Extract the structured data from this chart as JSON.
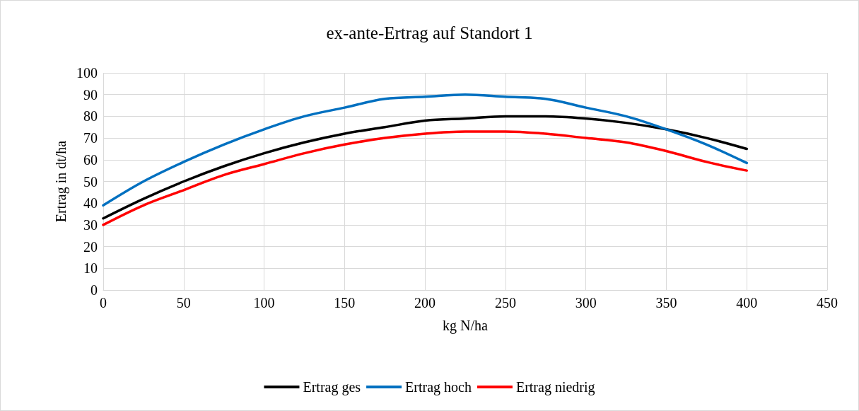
{
  "chart_data": {
    "type": "line",
    "title": "ex-ante-Ertrag auf Standort 1",
    "xlabel": "kg N/ha",
    "ylabel": "Ertrag in dt/ha",
    "x": [
      0,
      25,
      50,
      75,
      100,
      125,
      150,
      175,
      200,
      225,
      250,
      275,
      300,
      325,
      350,
      375,
      400
    ],
    "series": [
      {
        "name": "Ertrag ges",
        "color": "#000000",
        "values": [
          33,
          42,
          50,
          57,
          63,
          68,
          72,
          75,
          78,
          79,
          80,
          80,
          79,
          77,
          74,
          70,
          65
        ]
      },
      {
        "name": "Ertrag hoch",
        "color": "#0070c0",
        "values": [
          39,
          50,
          59,
          67,
          74,
          80,
          84,
          88,
          89,
          90,
          89,
          88,
          84,
          80,
          74,
          67,
          58.5
        ]
      },
      {
        "name": "Ertrag niedrig",
        "color": "#ff0000",
        "values": [
          30,
          39,
          46,
          53,
          58,
          63,
          67,
          70,
          72,
          73,
          73,
          72,
          70,
          68,
          64,
          59,
          55
        ]
      }
    ],
    "xlim": [
      0,
      450
    ],
    "xticks": [
      0,
      50,
      100,
      150,
      200,
      250,
      300,
      350,
      400,
      450
    ],
    "ylim": [
      0,
      100
    ],
    "yticks": [
      0,
      10,
      20,
      30,
      40,
      50,
      60,
      70,
      80,
      90,
      100
    ],
    "grid": true,
    "legend": "bottom",
    "marker": "none",
    "line_style": "solid"
  }
}
